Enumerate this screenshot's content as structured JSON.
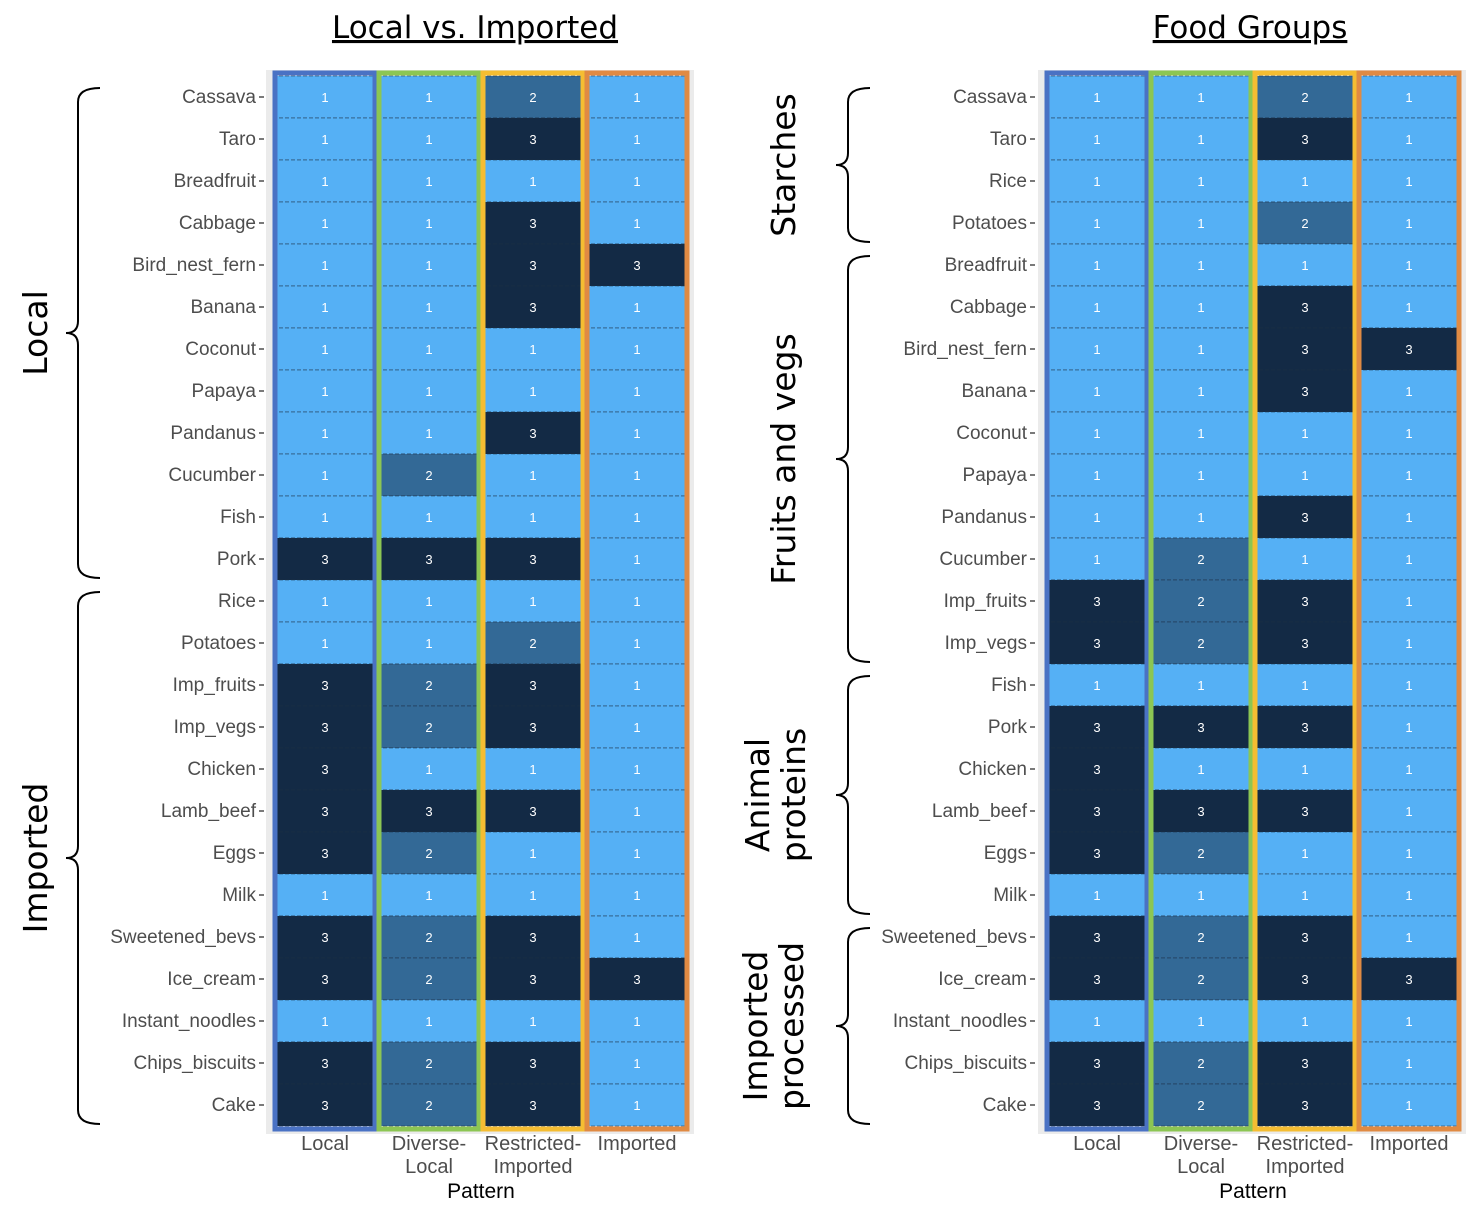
{
  "colors": {
    "level_1": "#55b0f5",
    "level_2": "#336996",
    "level_3": "#132a45",
    "local": "#4a72c4",
    "diverse_local": "#8cc653",
    "restricted_imported": "#f5bd32",
    "imported": "#e08a43"
  },
  "chart_data": [
    {
      "type": "heatmap",
      "title": "Local vs. Imported",
      "xlabel": "Pattern",
      "ylabel": "",
      "columns": [
        "Local",
        "Diverse-Local",
        "Restricted-Imported",
        "Imported"
      ],
      "column_display": [
        [
          "Local"
        ],
        [
          "Diverse-",
          "Local"
        ],
        [
          "Restricted-",
          "Imported"
        ],
        [
          "Imported"
        ]
      ],
      "rows": [
        "Cassava",
        "Taro",
        "Breadfruit",
        "Cabbage",
        "Bird_nest_fern",
        "Banana",
        "Coconut",
        "Papaya",
        "Pandanus",
        "Cucumber",
        "Fish",
        "Pork",
        "Rice",
        "Potatoes",
        "Imp_fruits",
        "Imp_vegs",
        "Chicken",
        "Lamb_beef",
        "Eggs",
        "Milk",
        "Sweetened_bevs",
        "Ice_cream",
        "Instant_noodles",
        "Chips_biscuits",
        "Cake"
      ],
      "values": [
        [
          1,
          1,
          2,
          1
        ],
        [
          1,
          1,
          3,
          1
        ],
        [
          1,
          1,
          1,
          1
        ],
        [
          1,
          1,
          3,
          1
        ],
        [
          1,
          1,
          3,
          3
        ],
        [
          1,
          1,
          3,
          1
        ],
        [
          1,
          1,
          1,
          1
        ],
        [
          1,
          1,
          1,
          1
        ],
        [
          1,
          1,
          3,
          1
        ],
        [
          1,
          2,
          1,
          1
        ],
        [
          1,
          1,
          1,
          1
        ],
        [
          3,
          3,
          3,
          1
        ],
        [
          1,
          1,
          1,
          1
        ],
        [
          1,
          1,
          2,
          1
        ],
        [
          3,
          2,
          3,
          1
        ],
        [
          3,
          2,
          3,
          1
        ],
        [
          3,
          1,
          1,
          1
        ],
        [
          3,
          3,
          3,
          1
        ],
        [
          3,
          2,
          1,
          1
        ],
        [
          1,
          1,
          1,
          1
        ],
        [
          3,
          2,
          3,
          1
        ],
        [
          3,
          2,
          3,
          3
        ],
        [
          1,
          1,
          1,
          1
        ],
        [
          3,
          2,
          3,
          1
        ],
        [
          3,
          2,
          3,
          1
        ]
      ],
      "groups": [
        {
          "label": "Local",
          "from": "Cassava",
          "to": "Pork"
        },
        {
          "label": "Imported",
          "from": "Rice",
          "to": "Cake"
        }
      ]
    },
    {
      "type": "heatmap",
      "title": "Food Groups",
      "xlabel": "Pattern",
      "ylabel": "",
      "columns": [
        "Local",
        "Diverse-Local",
        "Restricted-Imported",
        "Imported"
      ],
      "column_display": [
        [
          "Local"
        ],
        [
          "Diverse-",
          "Local"
        ],
        [
          "Restricted-",
          "Imported"
        ],
        [
          "Imported"
        ]
      ],
      "rows": [
        "Cassava",
        "Taro",
        "Rice",
        "Potatoes",
        "Breadfruit",
        "Cabbage",
        "Bird_nest_fern",
        "Banana",
        "Coconut",
        "Papaya",
        "Pandanus",
        "Cucumber",
        "Imp_fruits",
        "Imp_vegs",
        "Fish",
        "Pork",
        "Chicken",
        "Lamb_beef",
        "Eggs",
        "Milk",
        "Sweetened_bevs",
        "Ice_cream",
        "Instant_noodles",
        "Chips_biscuits",
        "Cake"
      ],
      "values": [
        [
          1,
          1,
          2,
          1
        ],
        [
          1,
          1,
          3,
          1
        ],
        [
          1,
          1,
          1,
          1
        ],
        [
          1,
          1,
          2,
          1
        ],
        [
          1,
          1,
          1,
          1
        ],
        [
          1,
          1,
          3,
          1
        ],
        [
          1,
          1,
          3,
          3
        ],
        [
          1,
          1,
          3,
          1
        ],
        [
          1,
          1,
          1,
          1
        ],
        [
          1,
          1,
          1,
          1
        ],
        [
          1,
          1,
          3,
          1
        ],
        [
          1,
          2,
          1,
          1
        ],
        [
          3,
          2,
          3,
          1
        ],
        [
          3,
          2,
          3,
          1
        ],
        [
          1,
          1,
          1,
          1
        ],
        [
          3,
          3,
          3,
          1
        ],
        [
          3,
          1,
          1,
          1
        ],
        [
          3,
          3,
          3,
          1
        ],
        [
          3,
          2,
          1,
          1
        ],
        [
          1,
          1,
          1,
          1
        ],
        [
          3,
          2,
          3,
          1
        ],
        [
          3,
          2,
          3,
          3
        ],
        [
          1,
          1,
          1,
          1
        ],
        [
          3,
          2,
          3,
          1
        ],
        [
          3,
          2,
          3,
          1
        ]
      ],
      "groups": [
        {
          "label": "Starches",
          "lines": [
            "Starches"
          ],
          "from": "Cassava",
          "to": "Potatoes"
        },
        {
          "label": "Fruits and vegs",
          "lines": [
            "Fruits and vegs"
          ],
          "from": "Breadfruit",
          "to": "Imp_vegs"
        },
        {
          "label": "Animal proteins",
          "lines": [
            "Animal",
            "proteins"
          ],
          "from": "Fish",
          "to": "Milk"
        },
        {
          "label": "Imported processed",
          "lines": [
            "Imported",
            "processed"
          ],
          "from": "Sweetened_bevs",
          "to": "Cake"
        }
      ]
    }
  ]
}
